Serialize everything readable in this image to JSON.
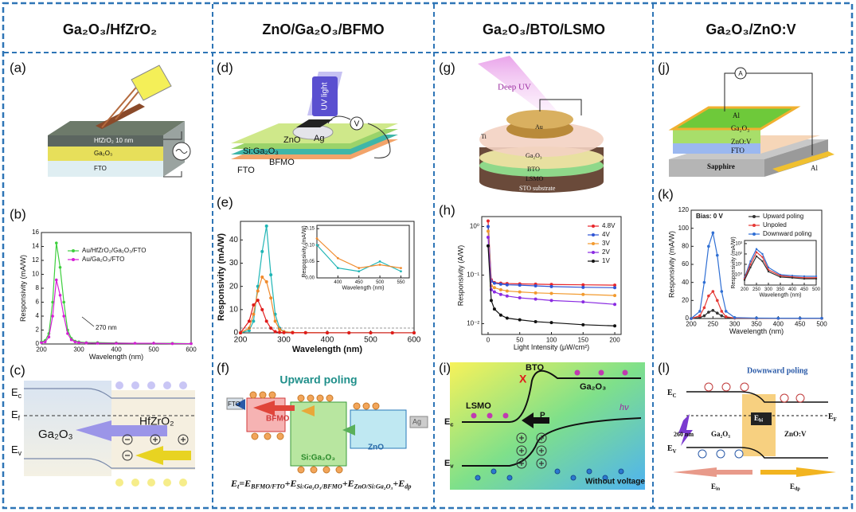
{
  "columns": [
    {
      "header": "Ga₂O₃/HfZrO₂",
      "panels": [
        {
          "label": "(a)",
          "texts": [
            "HfZrO₂ 10 nm",
            "Ga₂O₃",
            "FTO"
          ]
        },
        {
          "label": "(b)",
          "chart": {
            "type": "line",
            "xlabel": "Wavelength (nm)",
            "ylabel": "Responsivity (mA/W)",
            "xlim": [
              200,
              600
            ],
            "ylim": [
              0,
              16
            ],
            "xticks": [
              200,
              300,
              400,
              500,
              600
            ],
            "yticks": [
              0,
              2,
              4,
              6,
              8,
              10,
              12,
              14,
              16
            ],
            "legend": true,
            "annotation": "270 nm",
            "x": [
              200,
              210,
              220,
              230,
              240,
              250,
              260,
              270,
              280,
              290,
              300,
              320,
              350,
              400,
              450,
              500,
              550,
              600
            ],
            "series": [
              {
                "name": "Au/HfZrO₂/Ga₂O₃/FTO",
                "color": "#3ecf3e",
                "values": [
                  0.3,
                  0.5,
                  1.5,
                  6,
                  14.5,
                  11,
                  6,
                  2,
                  0.8,
                  0.4,
                  0.3,
                  0.2,
                  0.2,
                  0.15,
                  0.1,
                  0.1,
                  0.1,
                  0.05
                ]
              },
              {
                "name": "Au/Ga₂O₃/FTO",
                "color": "#d61fd6",
                "values": [
                  0.2,
                  0.3,
                  1,
                  4,
                  9.2,
                  7,
                  4,
                  1.5,
                  0.6,
                  0.3,
                  0.2,
                  0.15,
                  0.1,
                  0.1,
                  0.1,
                  0.1,
                  0.05,
                  0.05
                ]
              }
            ]
          }
        },
        {
          "label": "(c)",
          "texts": [
            [
              "E",
              "c"
            ],
            [
              "E",
              "f"
            ],
            "Ga₂O₃",
            "HfZrO₂",
            [
              "E",
              "v"
            ]
          ]
        }
      ]
    },
    {
      "header": "ZnO/Ga₂O₃/BFMO",
      "panels": [
        {
          "label": "(d)",
          "texts": [
            "UV light",
            "ZnO",
            "Ag",
            "V",
            "Si:Ga₂O₃",
            "BFMO",
            "FTO"
          ]
        },
        {
          "label": "(e)",
          "chart": {
            "type": "line",
            "xlabel": "Wavelength (nm)",
            "ylabel": "Responsivity (mA/W)",
            "xlim": [
              200,
              600
            ],
            "ylim": [
              0,
              48
            ],
            "xticks": [
              200,
              300,
              400,
              500,
              600
            ],
            "yticks": [
              0,
              10,
              20,
              30,
              40
            ],
            "x": [
              200,
              220,
              230,
              240,
              250,
              260,
              270,
              280,
              290,
              300,
              320,
              350,
              400,
              450,
              500,
              550,
              600
            ],
            "series": [
              {
                "color": "#1fb5b5",
                "values": [
                  0,
                  1,
                  5,
                  20,
                  35,
                  46,
                  25,
                  8,
                  2,
                  0.5,
                  0.2,
                  0.1,
                  0.05,
                  0.03,
                  0.05,
                  0.03,
                  0.02
                ]
              },
              {
                "color": "#f08a2c",
                "values": [
                  0,
                  2,
                  8,
                  18,
                  24,
                  22,
                  15,
                  5,
                  1.5,
                  0.5,
                  0.2,
                  0.1,
                  0.05,
                  0.03,
                  0.03,
                  0.02,
                  0.02
                ]
              },
              {
                "color": "#e01b1b",
                "values": [
                  0,
                  5,
                  12,
                  14,
                  10,
                  5,
                  2,
                  0.5,
                  0.2,
                  0.1,
                  0.05,
                  0.03,
                  0.02,
                  0.02,
                  0.02,
                  0.02,
                  0.02
                ]
              }
            ],
            "inset": {
              "type": "line",
              "xlabel": "Wavelength (nm)",
              "ylabel": "Responsivity (mA/W)",
              "xlim": [
                350,
                570
              ],
              "ylim": [
                0,
                0.16
              ],
              "xticks": [
                400,
                450,
                500,
                550
              ],
              "yticks": [
                {
                  "value": 0,
                  "label": "0.00"
                },
                0.05,
                {
                  "value": 0.1,
                  "label": "0.10"
                },
                0.15
              ],
              "x": [
                350,
                400,
                450,
                500,
                550
              ],
              "series": [
                {
                  "color": "#1fb5b5",
                  "values": [
                    0.1,
                    0.03,
                    0.02,
                    0.05,
                    0.02
                  ]
                },
                {
                  "color": "#f08a2c",
                  "values": [
                    0.12,
                    0.06,
                    0.03,
                    0.04,
                    0.03
                  ]
                }
              ]
            }
          }
        },
        {
          "label": "(f)",
          "texts": [
            "Upward poling",
            "FTO",
            "BFMO",
            "Si:Ga₂O₃",
            "ZnO",
            "Ag",
            [
              "E",
              "t",
              "=E",
              "BFMO/FTO",
              "+E",
              "Si:Ga₂O₃/BFMO",
              "+E",
              "ZnO/Si:Ga₂O₃",
              "+E",
              "dp"
            ]
          ]
        }
      ]
    },
    {
      "header": "Ga₂O₃/BTO/LSMO",
      "panels": [
        {
          "label": "(g)",
          "texts": [
            "Deep UV",
            "Au",
            "Ti",
            "Ga₂O₃",
            "BTO",
            "LSMO",
            "STO substrate"
          ]
        },
        {
          "label": "(h)",
          "chart": {
            "type": "line",
            "log": true,
            "xlabel": "Light Intensity (μW/cm²)",
            "ylabel": "Responsivity (A/W)",
            "xlim": [
              -10,
              210
            ],
            "ylim": [
              0.006,
              1.6
            ],
            "xticks": [
              0,
              50,
              100,
              150,
              200
            ],
            "yticks": [
              {
                "value": 0.01,
                "label": "10⁻²"
              },
              {
                "value": 0.1,
                "label": "10⁻¹"
              },
              {
                "value": 1,
                "label": "10⁰"
              }
            ],
            "legend": true,
            "x": [
              0,
              5,
              10,
              20,
              30,
              50,
              75,
              100,
              150,
              200
            ],
            "series": [
              {
                "name": "4.8V",
                "color": "#e8262b",
                "values": [
                  1.3,
                  0.08,
                  0.07,
                  0.068,
                  0.067,
                  0.066,
                  0.065,
                  0.064,
                  0.063,
                  0.062
                ]
              },
              {
                "name": "4V",
                "color": "#2f55d4",
                "values": [
                  1.0,
                  0.075,
                  0.068,
                  0.065,
                  0.063,
                  0.062,
                  0.06,
                  0.058,
                  0.056,
                  0.055
                ]
              },
              {
                "name": "3V",
                "color": "#f29a2e",
                "values": [
                  0.8,
                  0.06,
                  0.055,
                  0.05,
                  0.047,
                  0.045,
                  0.043,
                  0.042,
                  0.04,
                  0.038
                ]
              },
              {
                "name": "2V",
                "color": "#8a2be2",
                "values": [
                  0.6,
                  0.05,
                  0.045,
                  0.04,
                  0.037,
                  0.034,
                  0.032,
                  0.03,
                  0.028,
                  0.025
                ]
              },
              {
                "name": "1V",
                "color": "#111111",
                "values": [
                  0.4,
                  0.03,
                  0.02,
                  0.015,
                  0.013,
                  0.012,
                  0.011,
                  0.0105,
                  0.0095,
                  0.009
                ]
              }
            ]
          }
        },
        {
          "label": "(i)",
          "texts": [
            "BTO",
            "LSMO",
            "Ga₂O₃",
            "hν",
            "P",
            [
              "E",
              "c"
            ],
            [
              "E",
              "v"
            ],
            "Without voltage",
            "X"
          ]
        }
      ]
    },
    {
      "header": "Ga₂O₃/ZnO:V",
      "panels": [
        {
          "label": "(j)",
          "texts": [
            "A",
            "Al",
            "Ga₂O₃",
            "ZnO:V",
            "FTO",
            "Sapphire",
            "Al"
          ]
        },
        {
          "label": "(k)",
          "chart": {
            "type": "line",
            "xlabel": "Wavelength (nm)",
            "ylabel": "Responsivity (mA/W)",
            "xlim": [
              200,
              500
            ],
            "ylim": [
              0,
              120
            ],
            "xticks": [
              200,
              250,
              300,
              350,
              400,
              450,
              500
            ],
            "yticks": [
              0,
              20,
              40,
              60,
              80,
              100,
              120
            ],
            "legend": true,
            "annotation": "Bias: 0 V",
            "x": [
              200,
              220,
              230,
              240,
              250,
              260,
              270,
              280,
              300,
              350,
              400,
              450,
              500
            ],
            "series": [
              {
                "name": "Upward poling",
                "color": "#333333",
                "values": [
                  0,
                  1,
                  3,
                  7,
                  9,
                  6,
                  3,
                  1,
                  0.5,
                  0.3,
                  0.2,
                  0.2,
                  0.2
                ]
              },
              {
                "name": "Unpoled",
                "color": "#e53935",
                "values": [
                  0,
                  3,
                  12,
                  25,
                  30,
                  20,
                  8,
                  2,
                  0.5,
                  0.3,
                  0.2,
                  0.2,
                  0.2
                ]
              },
              {
                "name": "Downward poling",
                "color": "#2f6fd4",
                "values": [
                  0,
                  8,
                  40,
                  80,
                  95,
                  70,
                  30,
                  8,
                  1,
                  0.5,
                  0.3,
                  0.3,
                  0.3
                ]
              }
            ],
            "inset": {
              "type": "line",
              "log": true,
              "xlabel": "Wavelength (nm)",
              "ylabel": "Responsivity (mA/W)",
              "xlim": [
                200,
                500
              ],
              "ylim": [
                0.1,
                2000
              ],
              "xticks": [
                200,
                250,
                300,
                350,
                400,
                450,
                500
              ],
              "yticks": [
                {
                  "value": 1,
                  "label": "10⁰"
                },
                {
                  "value": 10,
                  "label": "10¹"
                },
                {
                  "value": 100,
                  "label": "10²"
                },
                {
                  "value": 1000,
                  "label": "10³"
                }
              ],
              "x": [
                200,
                225,
                250,
                275,
                300,
                350,
                400,
                450,
                500
              ],
              "series": [
                {
                  "color": "#2f6fd4",
                  "values": [
                    0.5,
                    20,
                    300,
                    100,
                    5,
                    1,
                    0.8,
                    0.7,
                    0.7
                  ]
                },
                {
                  "color": "#e53935",
                  "values": [
                    0.4,
                    10,
                    150,
                    50,
                    3,
                    0.8,
                    0.6,
                    0.5,
                    0.5
                  ]
                },
                {
                  "color": "#333333",
                  "values": [
                    0.3,
                    5,
                    60,
                    20,
                    2,
                    0.6,
                    0.5,
                    0.4,
                    0.4
                  ]
                }
              ]
            }
          }
        },
        {
          "label": "(l)",
          "texts": [
            "Downward poling",
            [
              "E",
              "C"
            ],
            [
              "E",
              "F"
            ],
            "260 nm",
            "Ga₂O₃",
            [
              "E",
              "bi"
            ],
            "ZnO:V",
            [
              "E",
              "V"
            ],
            [
              "E",
              "in"
            ],
            [
              "E",
              "dp"
            ]
          ]
        }
      ]
    }
  ]
}
